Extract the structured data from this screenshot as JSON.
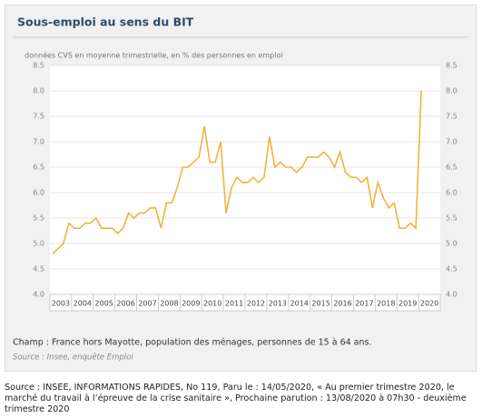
{
  "chart_data": {
    "type": "line",
    "title": "Sous-emploi au sens du BIT",
    "subtitle": "données CVS en moyenne trimestrielle, en % des personnes en emploi",
    "note": "Champ : France hors Mayotte, population des ménages, personnes de 15 à 64 ans.",
    "source": "Source : Insee, enquête Emploi",
    "xticks": [
      2003,
      2004,
      2005,
      2006,
      2007,
      2008,
      2009,
      2010,
      2011,
      2012,
      2013,
      2014,
      2015,
      2016,
      2017,
      2018,
      2019,
      2020
    ],
    "series": [
      {
        "color": "#f2b33d",
        "values": [
          4.8,
          4.9,
          5.0,
          5.4,
          5.3,
          5.3,
          5.4,
          5.4,
          5.5,
          5.3,
          5.3,
          5.3,
          5.2,
          5.3,
          5.6,
          5.5,
          5.6,
          5.6,
          5.7,
          5.7,
          5.3,
          5.8,
          5.8,
          6.1,
          6.5,
          6.5,
          6.6,
          6.7,
          7.3,
          6.6,
          6.6,
          7.0,
          5.6,
          6.1,
          6.3,
          6.2,
          6.2,
          6.3,
          6.2,
          6.3,
          7.1,
          6.5,
          6.6,
          6.5,
          6.5,
          6.4,
          6.5,
          6.7,
          6.7,
          6.7,
          6.8,
          6.7,
          6.5,
          6.8,
          6.4,
          6.3,
          6.3,
          6.2,
          6.3,
          5.7,
          6.2,
          5.9,
          5.7,
          5.8,
          5.3,
          5.3,
          5.4,
          5.3,
          8.0
        ]
      }
    ],
    "ylim": [
      4.0,
      8.5
    ],
    "yticks": [
      {
        "value": 4.0,
        "label": "4.0"
      },
      {
        "value": 4.5,
        "label": "4.5"
      },
      {
        "value": 5.0,
        "label": "5.0"
      },
      {
        "value": 5.5,
        "label": "5.5"
      },
      {
        "value": 6.0,
        "label": "6.0"
      },
      {
        "value": 6.5,
        "label": "6.5"
      },
      {
        "value": 7.0,
        "label": "7.0"
      },
      {
        "value": 7.5,
        "label": "7.5"
      },
      {
        "value": 8.0,
        "label": "8.0"
      },
      {
        "value": 8.5,
        "label": "8.5"
      }
    ],
    "grid": true
  },
  "footer": "Source : INSEE, INFORMATIONS RAPIDES, No 119, Paru le : 14/05/2020, « Au premier trimestre 2020, le marché du travail à l’épreuve de la crise sanitaire », Prochaine parution : 13/08/2020 à 07h30 - deuxième trimestre 2020"
}
